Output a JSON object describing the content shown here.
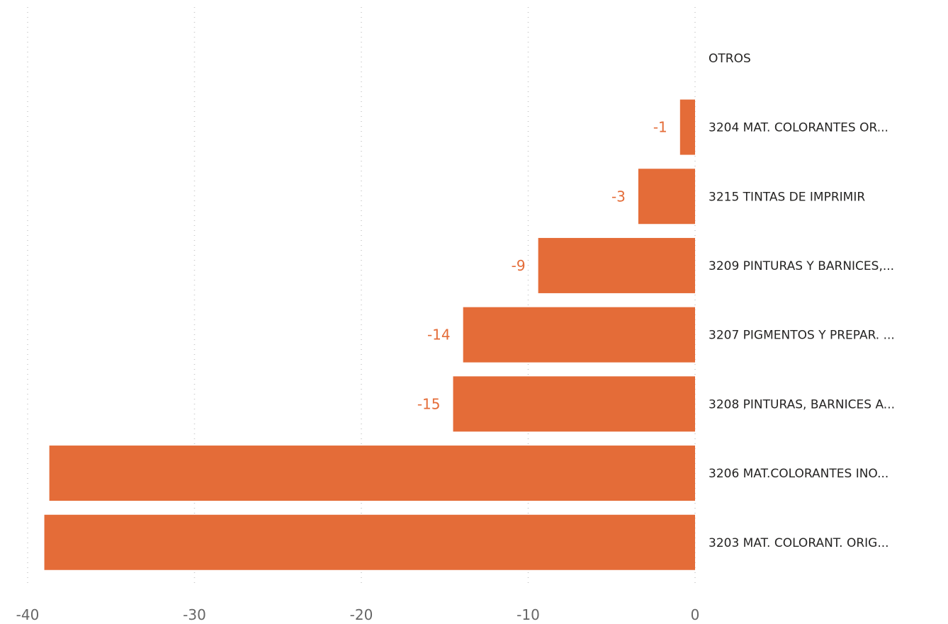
{
  "chart_data": {
    "type": "bar",
    "orientation": "horizontal",
    "categories": [
      "OTROS",
      "3204 MAT. COLORANTES OR...",
      "3215 TINTAS DE IMPRIMIR",
      "3209 PINTURAS Y BARNICES,...",
      "3207 PIGMENTOS Y PREPAR. ...",
      "3208 PINTURAS, BARNICES A...",
      "3206 MAT.COLORANTES INO...",
      "3203 MAT. COLORANT. ORIG..."
    ],
    "values": [
      0,
      -0.9,
      -3.4,
      -9.4,
      -13.9,
      -14.5,
      -38.7,
      -39.0
    ],
    "data_labels": [
      "",
      "-1",
      "-3",
      "-9",
      "-14",
      "-15",
      "",
      ""
    ],
    "xlim": [
      -40,
      0
    ],
    "xticks": [
      -40,
      -30,
      -20,
      -10,
      0
    ],
    "xtick_labels": [
      "-40",
      "-30",
      "-20",
      "-10",
      "0"
    ],
    "grid": true,
    "bar_color": "#E46C38",
    "label_color": "#E46C38",
    "title": "",
    "xlabel": "",
    "ylabel": ""
  }
}
